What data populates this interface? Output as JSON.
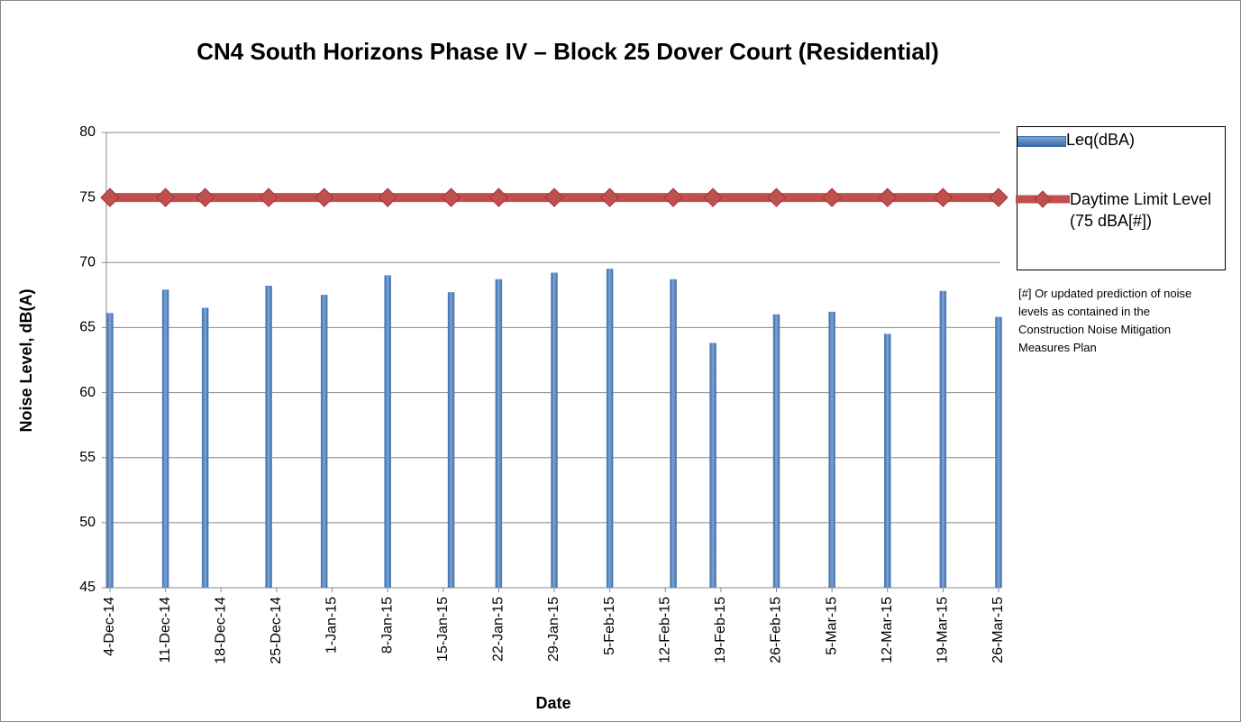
{
  "chart_data": {
    "type": "bar",
    "title": "CN4 South Horizons Phase IV – Block 25 Dover Court (Residential)",
    "x_label": "Date",
    "y_label": "Noise Level, dB(A)",
    "note": "[#] Or updated prediction of noise levels as contained in the Construction Noise Mitigation Measures Plan",
    "x": [
      "2014-12-04",
      "2014-12-11",
      "2014-12-16",
      "2014-12-24",
      "2014-12-31",
      "2015-01-08",
      "2015-01-16",
      "2015-01-22",
      "2015-01-29",
      "2015-02-05",
      "2015-02-13",
      "2015-02-18",
      "2015-02-26",
      "2015-03-05",
      "2015-03-12",
      "2015-03-19",
      "2015-03-26"
    ],
    "series": [
      {
        "name": "Leq(dBA)",
        "type": "bar",
        "color": "#4f81bd",
        "values": [
          66.1,
          67.9,
          66.5,
          68.2,
          67.5,
          69.0,
          67.7,
          68.7,
          69.2,
          69.5,
          68.7,
          63.8,
          66.0,
          66.2,
          64.5,
          67.8,
          65.8
        ]
      },
      {
        "name": "Daytime Limit Level (75 dBA[#])",
        "type": "line",
        "color": "#c0504d",
        "values": [
          75,
          75,
          75,
          75,
          75,
          75,
          75,
          75,
          75,
          75,
          75,
          75,
          75,
          75,
          75,
          75,
          75
        ]
      }
    ],
    "xlim": [
      "2014-12-04",
      "2015-03-26"
    ],
    "xticks": [
      {
        "value": "2014-12-04",
        "label": "4-Dec-14"
      },
      {
        "value": "2014-12-11",
        "label": "11-Dec-14"
      },
      {
        "value": "2014-12-18",
        "label": "18-Dec-14"
      },
      {
        "value": "2014-12-25",
        "label": "25-Dec-14"
      },
      {
        "value": "2015-01-01",
        "label": "1-Jan-15"
      },
      {
        "value": "2015-01-08",
        "label": "8-Jan-15"
      },
      {
        "value": "2015-01-15",
        "label": "15-Jan-15"
      },
      {
        "value": "2015-01-22",
        "label": "22-Jan-15"
      },
      {
        "value": "2015-01-29",
        "label": "29-Jan-15"
      },
      {
        "value": "2015-02-05",
        "label": "5-Feb-15"
      },
      {
        "value": "2015-02-12",
        "label": "12-Feb-15"
      },
      {
        "value": "2015-02-19",
        "label": "19-Feb-15"
      },
      {
        "value": "2015-02-26",
        "label": "26-Feb-15"
      },
      {
        "value": "2015-03-05",
        "label": "5-Mar-15"
      },
      {
        "value": "2015-03-12",
        "label": "12-Mar-15"
      },
      {
        "value": "2015-03-19",
        "label": "19-Mar-15"
      },
      {
        "value": "2015-03-26",
        "label": "26-Mar-15"
      }
    ],
    "ylim": [
      45,
      80
    ],
    "yticks": [
      45,
      50,
      55,
      60,
      65,
      70,
      75,
      80
    ],
    "grid": true,
    "legend": "right"
  }
}
